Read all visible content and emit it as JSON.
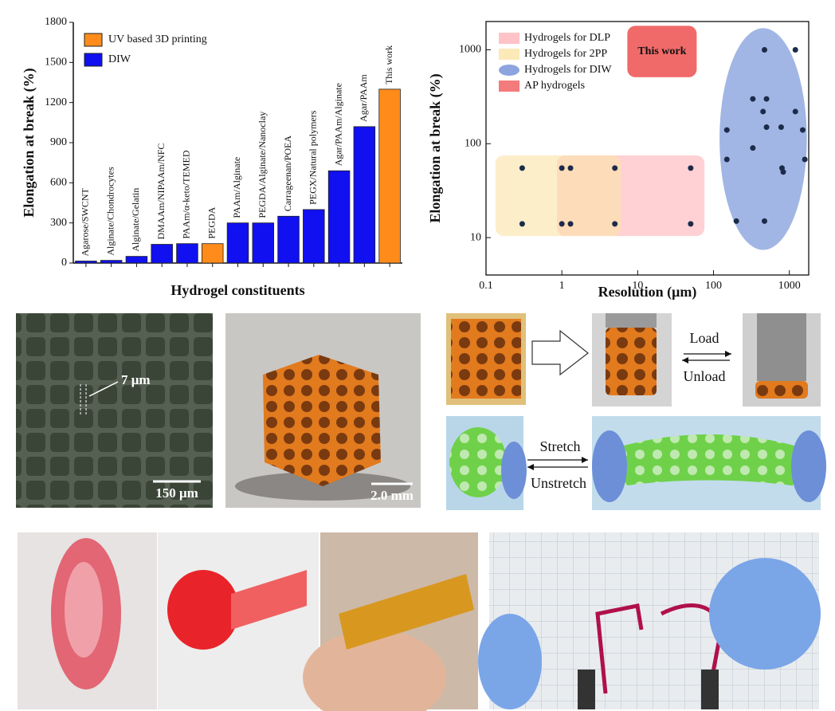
{
  "chart_data": [
    {
      "type": "bar",
      "xlabel": "Hydrogel constituents",
      "ylabel": "Elongation at break (%)",
      "categories": [
        "Agarose/SWCNT",
        "Alginate/Chondrocytes",
        "Alginate/Gelatin",
        "DMAAm/NIPAAm/NFC",
        "PAAm/α-keto/TEMED",
        "PEGDA",
        "PAAm/Alginate",
        "PEGDA/Alginate/Nanoclay",
        "Carrageenan/POEA",
        "PEGX/Natural polymers",
        "Agar/PAAm/Alginate",
        "Agar/PAAm",
        "This work"
      ],
      "series": [
        {
          "name": "UV based 3D printing",
          "color": "#ff8c1a",
          "values": [
            null,
            null,
            null,
            null,
            null,
            145,
            null,
            null,
            null,
            null,
            null,
            null,
            1300
          ]
        },
        {
          "name": "DIW",
          "color": "#1010f0",
          "values": [
            15,
            20,
            50,
            140,
            145,
            null,
            300,
            300,
            350,
            400,
            690,
            1020,
            null
          ]
        }
      ],
      "ylim": [
        0,
        1800
      ],
      "yticks": [
        0,
        300,
        600,
        900,
        1200,
        1500,
        1800
      ],
      "legend": "upper left"
    },
    {
      "type": "scatter",
      "xlabel": "Resolution (μm)",
      "ylabel": "Elongation at break (%)",
      "xscale": "log",
      "yscale": "log",
      "xlim": [
        0.1,
        1800
      ],
      "ylim": [
        4,
        2000
      ],
      "xticks": [
        0.1,
        1,
        10,
        100,
        1000
      ],
      "yticks": [
        10,
        100,
        1000
      ],
      "regions": [
        {
          "name": "Hydrogels for DLP",
          "color": "#ffb3b8",
          "shape": "rect",
          "xrange": [
            0.86,
            76
          ],
          "yrange": [
            10.4,
            75
          ]
        },
        {
          "name": "Hydrogels for 2PP",
          "color": "#fbe3a6",
          "shape": "rect",
          "xrange": [
            0.133,
            6
          ],
          "yrange": [
            10.4,
            75
          ]
        },
        {
          "name": "Hydrogels for DIW",
          "color": "#6f8fd6",
          "shape": "ellipse",
          "xrange": [
            120,
            1700
          ],
          "yrange": [
            7.4,
            1700
          ]
        },
        {
          "name": "AP hydrogels",
          "color": "#f05a5a",
          "shape": "rect",
          "xrange": [
            7.3,
            60
          ],
          "yrange": [
            510,
            1800
          ],
          "label": "This work"
        }
      ],
      "points": {
        "color": "#1c2b4a",
        "x": [
          0.3,
          0.3,
          1,
          1,
          1.3,
          1.3,
          5,
          5,
          50,
          50,
          470,
          1200,
          330,
          500,
          450,
          1200,
          150,
          500,
          780,
          1500,
          150,
          1600,
          800,
          830,
          330,
          200,
          470
        ],
        "y": [
          55,
          14,
          55,
          14,
          55,
          14,
          55,
          14,
          55,
          14,
          1000,
          1000,
          300,
          300,
          220,
          220,
          140,
          150,
          150,
          140,
          68,
          68,
          55,
          50,
          90,
          15,
          15
        ]
      }
    }
  ],
  "annotations": {
    "micro_feature": "7 μm",
    "micro_scale": "150 μm",
    "lattice_scale": "2.0 mm",
    "load": "Load",
    "unload": "Unload",
    "stretch": "Stretch",
    "unstretch": "Unstretch"
  }
}
